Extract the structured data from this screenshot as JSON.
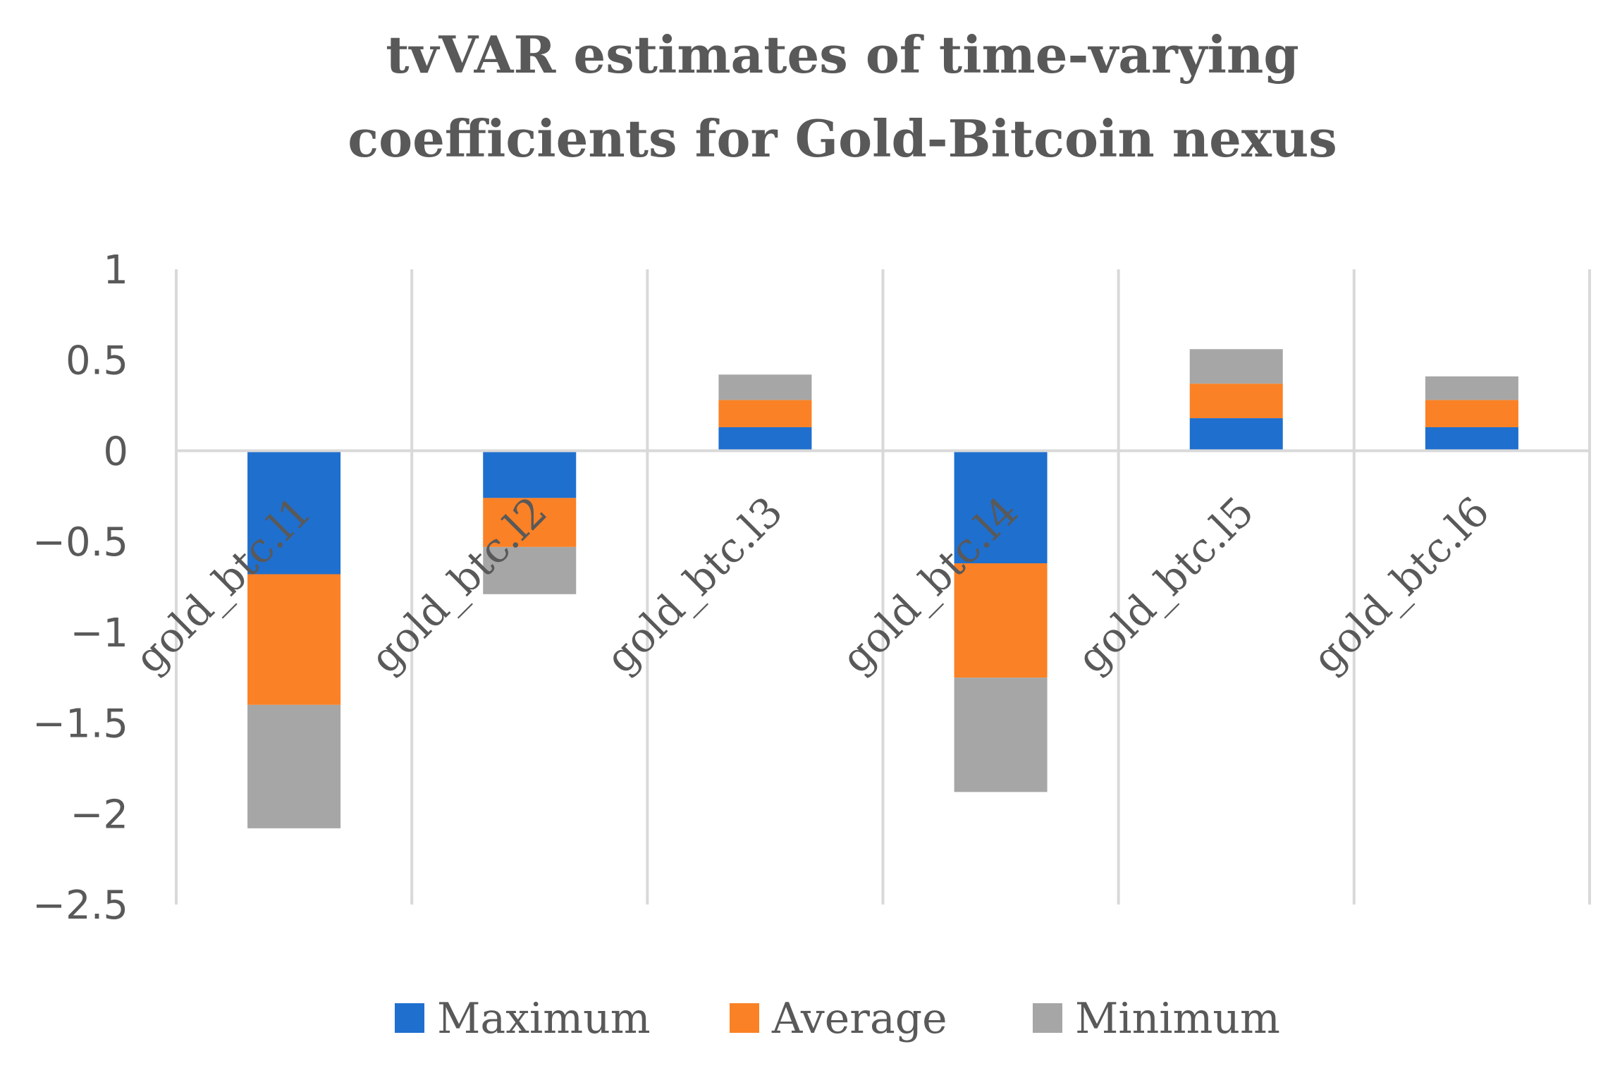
{
  "chart_data": {
    "type": "bar",
    "stacked": true,
    "title_lines": [
      "tvVAR estimates of time-varying",
      "coefficients for Gold-Bitcoin nexus"
    ],
    "categories": [
      "gold_btc.l1",
      "gold_btc.l2",
      "gold_btc.l3",
      "gold_btc.l4",
      "gold_btc.l5",
      "gold_btc.l6"
    ],
    "series": [
      {
        "name": "Maximum",
        "color": "#1F6FCE",
        "values": [
          -0.68,
          -0.26,
          0.13,
          -0.62,
          0.18,
          0.13
        ]
      },
      {
        "name": "Average",
        "color": "#FA8125",
        "values": [
          -0.72,
          -0.27,
          0.15,
          -0.63,
          0.19,
          0.15
        ]
      },
      {
        "name": "Minimum",
        "color": "#A6A6A6",
        "values": [
          -0.68,
          -0.26,
          0.14,
          -0.63,
          0.19,
          0.13
        ]
      }
    ],
    "y_ticks": [
      "1",
      "0.5",
      "0",
      "−0.5",
      "−1",
      "−1.5",
      "−2",
      "−2.5"
    ],
    "y_tick_values": [
      1,
      0.5,
      0,
      -0.5,
      -1,
      -1.5,
      -2,
      -2.5
    ],
    "ylim": [
      -2.5,
      1
    ],
    "xlabel": "",
    "ylabel": "",
    "grid": "vertical",
    "legend_position": "bottom-center",
    "colors": {
      "gridline": "#D9D9D9",
      "text": "#595959"
    }
  }
}
